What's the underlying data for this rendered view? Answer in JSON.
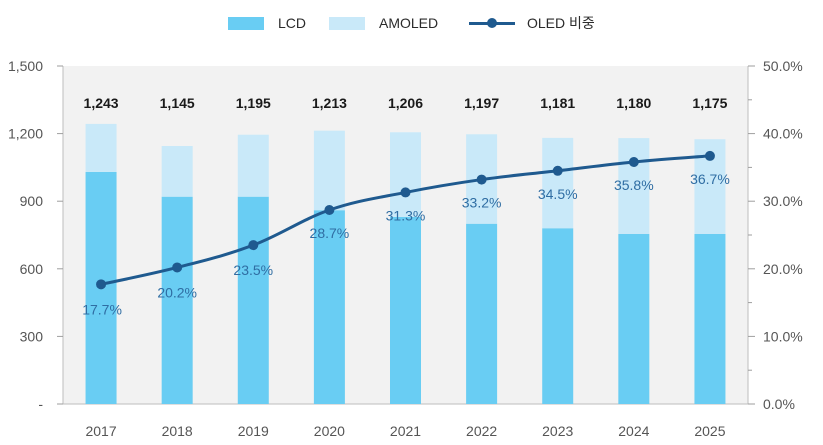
{
  "chart_data": {
    "type": "bar+line",
    "categories": [
      "2017",
      "2018",
      "2019",
      "2020",
      "2021",
      "2022",
      "2023",
      "2024",
      "2025"
    ],
    "series": [
      {
        "name": "LCD",
        "kind": "stacked-bar",
        "color": "#69cdf3",
        "values": [
          1030,
          920,
          920,
          860,
          830,
          800,
          780,
          755,
          755
        ]
      },
      {
        "name": "AMOLED",
        "kind": "stacked-bar",
        "color": "#c9e9f9",
        "values": [
          213,
          225,
          275,
          353,
          376,
          397,
          401,
          425,
          420
        ]
      },
      {
        "name": "OLED 비중",
        "kind": "line",
        "color": "#1f5a8f",
        "axis": "right",
        "values": [
          17.7,
          20.2,
          23.5,
          28.7,
          31.3,
          33.2,
          34.5,
          35.8,
          36.7
        ]
      }
    ],
    "totals": [
      "1,243",
      "1,145",
      "1,195",
      "1,213",
      "1,206",
      "1,197",
      "1,181",
      "1,180",
      "1,175"
    ],
    "line_labels": [
      "17.7%",
      "20.2%",
      "23.5%",
      "28.7%",
      "31.3%",
      "33.2%",
      "34.5%",
      "35.8%",
      "36.7%"
    ],
    "left_axis": {
      "ylim": [
        0,
        1500
      ],
      "ticks": [
        "-",
        "300",
        "600",
        "900",
        "1,200",
        "1,500"
      ],
      "tick_values": [
        0,
        300,
        600,
        900,
        1200,
        1500
      ]
    },
    "right_axis": {
      "ylim": [
        0,
        50
      ],
      "ticks": [
        "0.0%",
        "10.0%",
        "20.0%",
        "30.0%",
        "40.0%",
        "50.0%"
      ],
      "tick_values": [
        0,
        10,
        20,
        30,
        40,
        50
      ]
    },
    "legend": {
      "position": "top-center",
      "entries": [
        "LCD",
        "AMOLED",
        "OLED 비중"
      ]
    },
    "plot_background": "#f2f2f2",
    "total_label_color": "#1a1a1a",
    "percent_label_color": "#2f6da3",
    "axis_text_color": "#555555"
  }
}
